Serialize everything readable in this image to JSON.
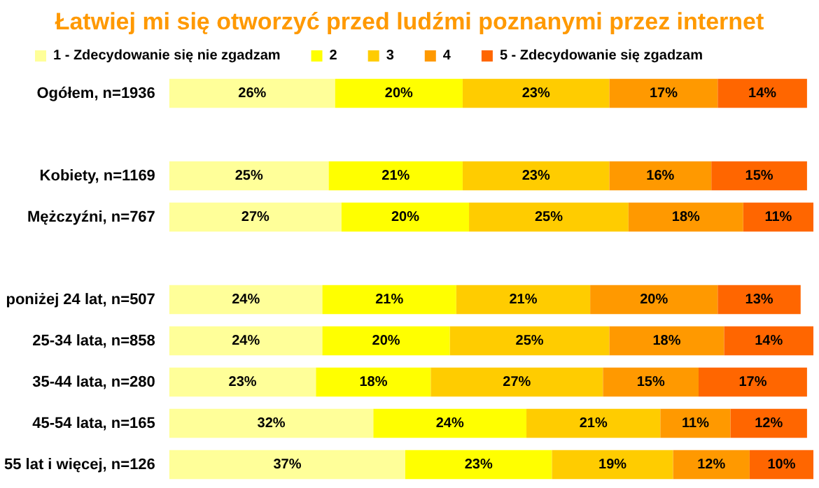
{
  "chart_data": {
    "type": "bar",
    "orientation": "horizontal",
    "stacked": true,
    "title": "Łatwiej mi się otworzyć przed ludźmi poznanymi przez internet",
    "legend": "top",
    "categories": [
      "Ogółem, n=1936",
      null,
      "Kobiety, n=1169",
      "Mężczyźni, n=767",
      null,
      "poniżej 24 lat, n=507",
      "25-34 lata, n=858",
      "35-44 lata, n=280",
      "45-54 lata, n=165",
      "55 lat i więcej, n=126"
    ],
    "series": [
      {
        "name": "1 - Zdecydowanie się nie zgadzam",
        "color": "#ffff99",
        "values": [
          26,
          null,
          25,
          27,
          null,
          24,
          24,
          23,
          32,
          37
        ],
        "value_labels": [
          "26%",
          null,
          "25%",
          "27%",
          null,
          "24%",
          "24%",
          "23%",
          "32%",
          "37%"
        ]
      },
      {
        "name": "2",
        "color": "#ffff00",
        "values": [
          20,
          null,
          21,
          20,
          null,
          21,
          20,
          18,
          24,
          23
        ],
        "value_labels": [
          "20%",
          null,
          "21%",
          "20%",
          null,
          "21%",
          "20%",
          "18%",
          "24%",
          "23%"
        ]
      },
      {
        "name": "3",
        "color": "#ffcc00",
        "values": [
          23,
          null,
          23,
          25,
          null,
          21,
          25,
          27,
          21,
          19
        ],
        "value_labels": [
          "23%",
          null,
          "23%",
          "25%",
          null,
          "21%",
          "25%",
          "27%",
          "21%",
          "19%"
        ]
      },
      {
        "name": "4",
        "color": "#ff9900",
        "values": [
          17,
          null,
          16,
          18,
          null,
          20,
          18,
          15,
          11,
          12
        ],
        "value_labels": [
          "17%",
          null,
          "16%",
          "18%",
          null,
          "20%",
          "18%",
          "15%",
          "11%",
          "12%"
        ]
      },
      {
        "name": "5 - Zdecydowanie się zgadzam",
        "color": "#ff6600",
        "values": [
          14,
          null,
          15,
          11,
          null,
          13,
          14,
          17,
          12,
          10
        ],
        "value_labels": [
          "14%",
          null,
          "15%",
          "11%",
          null,
          "13%",
          "14%",
          "17%",
          "12%",
          "10%"
        ]
      }
    ]
  }
}
